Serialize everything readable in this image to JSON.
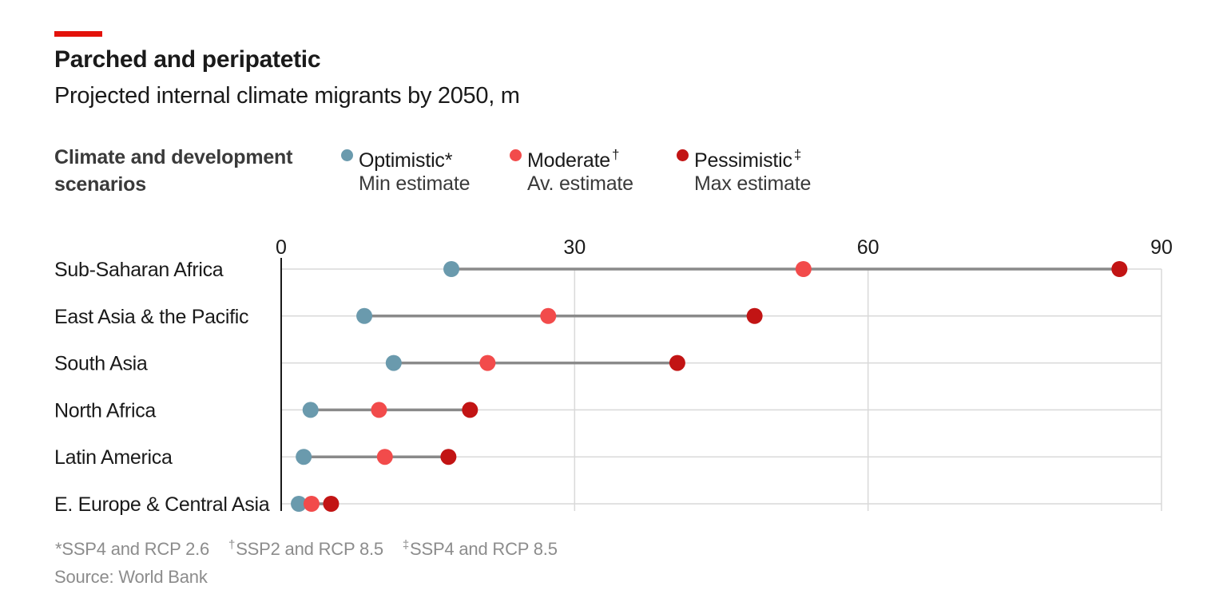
{
  "header": {
    "title": "Parched and peripatetic",
    "subtitle": "Projected internal climate migrants by 2050, m"
  },
  "legend": {
    "heading_line1": "Climate and development",
    "heading_line2": "scenarios",
    "items": [
      {
        "label": "Optimistic*",
        "mark": "",
        "sub": "Min estimate",
        "color": "#6a9aad"
      },
      {
        "label": "Moderate",
        "mark": "†",
        "sub": "Av. estimate",
        "color": "#f24b4b"
      },
      {
        "label": "Pessimistic",
        "mark": "‡",
        "sub": "Max estimate",
        "color": "#c21414"
      }
    ]
  },
  "footnotes": [
    {
      "mark": "",
      "text": "*SSP4 and RCP 2.6"
    },
    {
      "mark": "†",
      "text": "SSP2 and RCP 8.5"
    },
    {
      "mark": "‡",
      "text": "SSP4 and RCP 8.5"
    }
  ],
  "source": "Source: World Bank",
  "colors": {
    "accent_bar": "#e3120b",
    "connector": "#8a8a8a",
    "grid": "#d9d9d9",
    "axis": "#1a1a1a"
  },
  "chart_data": {
    "type": "scatter",
    "subtype": "dumbbell",
    "categories": [
      "Sub-Saharan Africa",
      "East Asia & the Pacific",
      "South Asia",
      "North Africa",
      "Latin America",
      "E. Europe & Central Asia"
    ],
    "series": [
      {
        "name": "Optimistic*",
        "values": [
          17.4,
          8.5,
          11.5,
          3.0,
          2.3,
          1.8
        ]
      },
      {
        "name": "Moderate",
        "values": [
          53.4,
          27.3,
          21.1,
          10.0,
          10.6,
          3.1
        ]
      },
      {
        "name": "Pessimistic",
        "values": [
          85.7,
          48.4,
          40.5,
          19.3,
          17.1,
          5.1
        ]
      }
    ],
    "x_ticks": [
      0,
      30,
      60,
      90
    ],
    "xlim": [
      0,
      90
    ],
    "grid": true,
    "legend_position": "top"
  }
}
